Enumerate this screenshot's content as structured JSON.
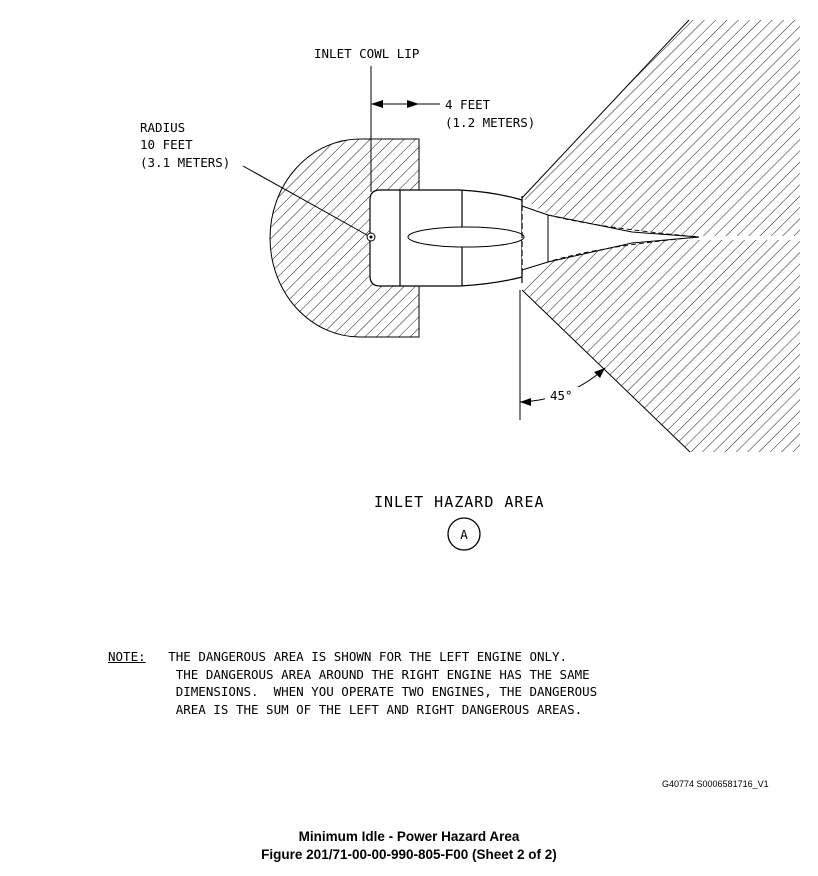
{
  "diagram": {
    "labels": {
      "inlet_cowl_lip": "INLET COWL LIP",
      "radius_1": "RADIUS",
      "radius_2": "10 FEET",
      "radius_3": "(3.1 METERS)",
      "dist_1": "4 FEET",
      "dist_2": "(1.2 METERS)",
      "angle": "45°"
    },
    "section_title": "INLET HAZARD AREA",
    "view_marker": "A"
  },
  "note": {
    "label": "NOTE:",
    "lines": [
      "THE DANGEROUS AREA IS SHOWN FOR THE LEFT ENGINE ONLY.",
      "THE DANGEROUS AREA AROUND THE RIGHT ENGINE HAS THE SAME",
      "DIMENSIONS.  WHEN YOU OPERATE TWO ENGINES, THE DANGEROUS",
      "AREA IS THE SUM OF THE LEFT AND RIGHT DANGEROUS AREAS."
    ]
  },
  "figure_id": "G40774 S0006581716_V1",
  "caption": {
    "title": "Minimum Idle - Power Hazard Area",
    "subtitle": "Figure 201/71-00-00-990-805-F00  (Sheet 2 of 2)"
  }
}
